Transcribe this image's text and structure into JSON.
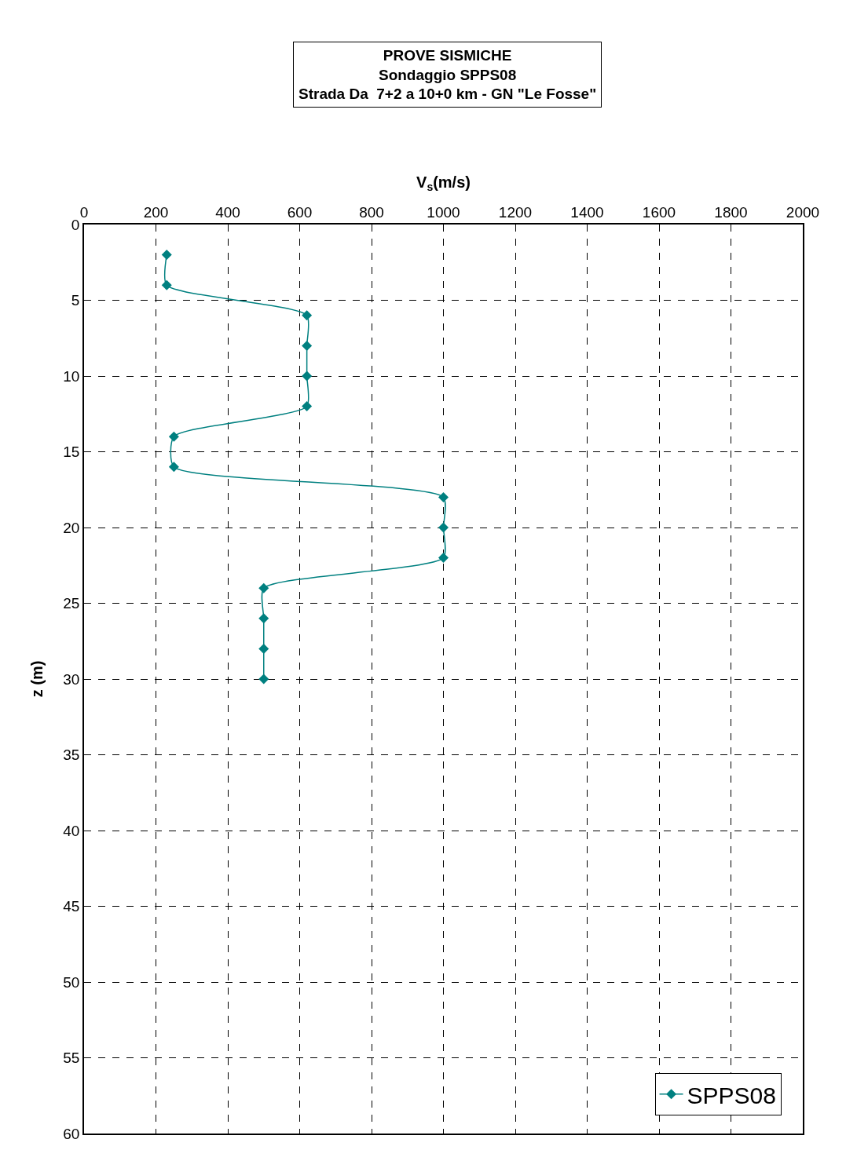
{
  "chart_data": {
    "type": "line",
    "title": "PROVE SISMICHE",
    "subtitle": "Sondaggio SPPS08\nStrada Da  7+2 a 10+0 km - GN \"Le Fosse\"",
    "xlabel": "V$_{s}$(m/s)",
    "ylabel": "z (m)",
    "x": [
      230,
      230,
      620,
      620,
      620,
      620,
      250,
      250,
      1000,
      1000,
      1000,
      500,
      500,
      500,
      500
    ],
    "series": [
      {
        "name": "SPPS08",
        "color": "#008080",
        "values": [
          2,
          4,
          6,
          8,
          10,
          12,
          14,
          16,
          18,
          20,
          22,
          24,
          26,
          28,
          30
        ]
      }
    ],
    "xlim": [
      0,
      2000
    ],
    "xticks": [
      0,
      200,
      400,
      600,
      800,
      1000,
      1200,
      1400,
      1600,
      1800,
      2000
    ],
    "ylim": [
      60,
      0
    ],
    "yticks": [
      0,
      5,
      10,
      15,
      20,
      25,
      30,
      35,
      40,
      45,
      50,
      55,
      60
    ],
    "grid": true,
    "legend": "bottom right",
    "marker": "diamond",
    "line_style": "solid"
  }
}
